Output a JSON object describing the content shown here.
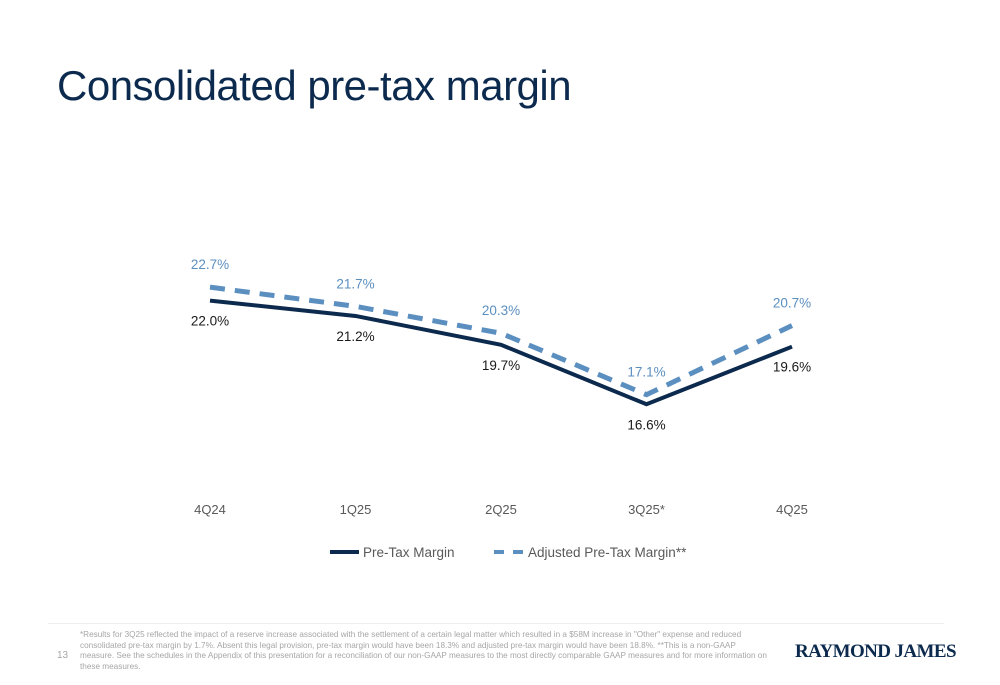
{
  "page": {
    "title": "Consolidated pre-tax margin",
    "page_number": "13",
    "footnote": "*Results for 3Q25 reflected the impact of a reserve increase associated with the settlement of a certain legal matter which resulted in a $58M increase in \"Other\" expense and reduced consolidated pre-tax margin by 1.7%. Absent this legal provision, pre-tax margin would have been 18.3% and adjusted pre-tax margin would have been 18.8%.  **This is a non-GAAP measure. See the schedules in the Appendix of this presentation for a reconciliation of our non-GAAP measures to the most directly comparable GAAP measures and for more information on these measures.",
    "logo_text": "RAYMOND JAMES"
  },
  "colors": {
    "title": "#0c2a4d",
    "pre_tax": "#0c2a4d",
    "adjusted": "#5b8fc0",
    "axis_text": "#595959",
    "footnote": "#a6a6a6"
  },
  "chart_data": {
    "type": "line",
    "title": "",
    "xlabel": "",
    "ylabel": "",
    "categories": [
      "4Q24",
      "1Q25",
      "2Q25",
      "3Q25*",
      "4Q25"
    ],
    "series": [
      {
        "name": "Pre-Tax Margin",
        "values": [
          22.0,
          21.2,
          19.7,
          16.6,
          19.6
        ],
        "labels": [
          "22.0%",
          "21.2%",
          "19.7%",
          "16.6%",
          "19.6%"
        ],
        "style": "solid",
        "color": "#0c2a4d",
        "label_position": "below"
      },
      {
        "name": "Adjusted Pre-Tax Margin**",
        "values": [
          22.7,
          21.7,
          20.3,
          17.1,
          20.7
        ],
        "labels": [
          "22.7%",
          "21.7%",
          "20.3%",
          "17.1%",
          "20.7%"
        ],
        "style": "dashed",
        "color": "#5b8fc0",
        "label_position": "above"
      }
    ],
    "ylim": [
      5,
      30
    ],
    "grid": false,
    "y_axis_visible": false,
    "legend": "bottom"
  }
}
